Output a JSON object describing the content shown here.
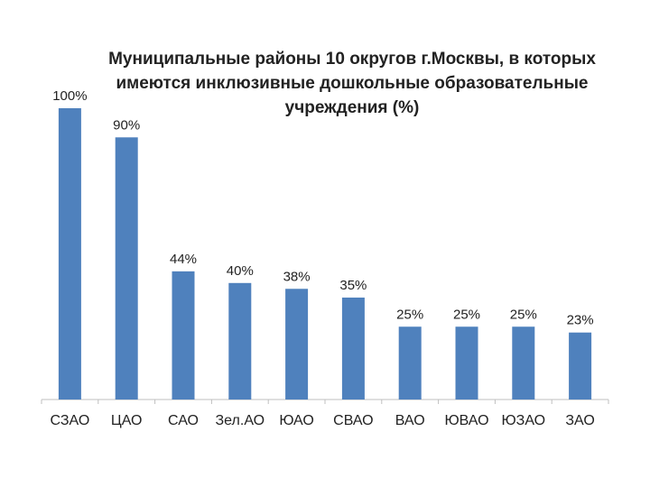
{
  "chart_data": {
    "type": "bar",
    "title": "Муниципальные районы 10 округов г.Москвы, в которых имеются инклюзивные дошкольные образовательные учреждения (%)",
    "categories": [
      "СЗАО",
      "ЦАО",
      "САО",
      "Зел.АО",
      "ЮАО",
      "СВАО",
      "ВАО",
      "ЮВАО",
      "ЮЗАО",
      "ЗАО"
    ],
    "values": [
      100,
      90,
      44,
      40,
      38,
      35,
      25,
      25,
      25,
      23
    ],
    "value_labels": [
      "100%",
      "90%",
      "44%",
      "40%",
      "38%",
      "35%",
      "25%",
      "25%",
      "25%",
      "23%"
    ],
    "ylim": [
      0,
      100
    ],
    "grid": false,
    "legend": "none",
    "bar_color": "#4f81bd",
    "axis_color": "#bfbfbf"
  }
}
